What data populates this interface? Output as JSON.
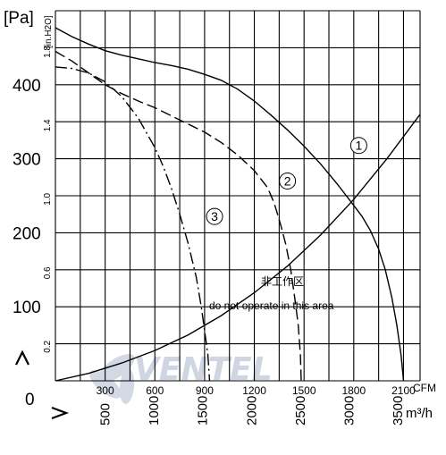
{
  "chart_data": {
    "type": "line",
    "title": "",
    "y_axis_pa": {
      "unit_label": "[Pa]",
      "range": [
        0,
        500
      ],
      "ticks": [
        {
          "value": 400,
          "label": "400"
        },
        {
          "value": 300,
          "label": "300"
        },
        {
          "value": 200,
          "label": "200"
        },
        {
          "value": 100,
          "label": "100"
        },
        {
          "value": 0,
          "label": "0"
        }
      ]
    },
    "y_axis_inh2o": {
      "unit_label": "[in.H2O]",
      "ticks": [
        {
          "value": 1.8,
          "label": "1.8"
        },
        {
          "value": 1.4,
          "label": "1.4"
        },
        {
          "value": 1.0,
          "label": "1.0"
        },
        {
          "value": 0.6,
          "label": "0.6"
        },
        {
          "value": 0.2,
          "label": "0.2"
        }
      ]
    },
    "x_axis_cfm": {
      "unit_label": "CFM",
      "range": [
        0,
        2200
      ],
      "ticks": [
        {
          "value": 300,
          "label": "300"
        },
        {
          "value": 600,
          "label": "600"
        },
        {
          "value": 900,
          "label": "900"
        },
        {
          "value": 1200,
          "label": "1200"
        },
        {
          "value": 1500,
          "label": "1500"
        },
        {
          "value": 1800,
          "label": "1800"
        },
        {
          "value": 2100,
          "label": "2100"
        }
      ]
    },
    "x_axis_m3h": {
      "unit_label": "m³/h",
      "ticks": [
        {
          "value": 500,
          "label": "500"
        },
        {
          "value": 1000,
          "label": "1000"
        },
        {
          "value": 1500,
          "label": "1500"
        },
        {
          "value": 2000,
          "label": "2000"
        },
        {
          "value": 2500,
          "label": "2500"
        },
        {
          "value": 3000,
          "label": "3000"
        },
        {
          "value": 3500,
          "label": "3500"
        }
      ]
    },
    "series": [
      {
        "name": "1",
        "style": "solid",
        "points": [
          [
            0,
            477
          ],
          [
            100,
            465
          ],
          [
            200,
            455
          ],
          [
            300,
            446
          ],
          [
            400,
            440
          ],
          [
            500,
            435
          ],
          [
            600,
            430
          ],
          [
            700,
            426
          ],
          [
            800,
            421
          ],
          [
            900,
            414
          ],
          [
            1000,
            406
          ],
          [
            1100,
            394
          ],
          [
            1200,
            378
          ],
          [
            1300,
            359
          ],
          [
            1400,
            339
          ],
          [
            1500,
            317
          ],
          [
            1600,
            293
          ],
          [
            1700,
            266
          ],
          [
            1800,
            237
          ],
          [
            1850,
            222
          ],
          [
            1900,
            203
          ],
          [
            1950,
            178
          ],
          [
            1990,
            150
          ],
          [
            2030,
            112
          ],
          [
            2060,
            75
          ],
          [
            2085,
            35
          ],
          [
            2100,
            0
          ]
        ]
      },
      {
        "name": "2",
        "style": "dashed",
        "points": [
          [
            0,
            445
          ],
          [
            100,
            432
          ],
          [
            200,
            416
          ],
          [
            300,
            400
          ],
          [
            400,
            388
          ],
          [
            500,
            378
          ],
          [
            600,
            369
          ],
          [
            700,
            358
          ],
          [
            800,
            347
          ],
          [
            900,
            336
          ],
          [
            1000,
            322
          ],
          [
            1100,
            305
          ],
          [
            1200,
            284
          ],
          [
            1280,
            261
          ],
          [
            1320,
            240
          ],
          [
            1360,
            210
          ],
          [
            1390,
            184
          ],
          [
            1420,
            150
          ],
          [
            1445,
            110
          ],
          [
            1465,
            75
          ],
          [
            1478,
            35
          ],
          [
            1483,
            0
          ]
        ]
      },
      {
        "name": "3",
        "style": "dashdot",
        "points": [
          [
            0,
            424
          ],
          [
            100,
            422
          ],
          [
            200,
            416
          ],
          [
            300,
            404
          ],
          [
            400,
            384
          ],
          [
            500,
            355
          ],
          [
            600,
            315
          ],
          [
            650,
            290
          ],
          [
            700,
            260
          ],
          [
            750,
            225
          ],
          [
            800,
            186
          ],
          [
            850,
            140
          ],
          [
            880,
            100
          ],
          [
            900,
            68
          ],
          [
            920,
            35
          ],
          [
            930,
            0
          ]
        ]
      },
      {
        "name": "",
        "style": "solid",
        "points": [
          [
            0,
            0
          ],
          [
            200,
            10
          ],
          [
            400,
            24
          ],
          [
            600,
            41
          ],
          [
            800,
            62
          ],
          [
            1000,
            88
          ],
          [
            1200,
            119
          ],
          [
            1400,
            155
          ],
          [
            1600,
            197
          ],
          [
            1800,
            245
          ],
          [
            2000,
            300
          ],
          [
            2200,
            360
          ]
        ]
      }
    ],
    "curve_labels": [
      "1",
      "2",
      "3"
    ],
    "annotations": [
      {
        "text": "非工作区"
      },
      {
        "text": "do not operate in this area"
      }
    ],
    "watermark": "VENTEL",
    "grid": true,
    "legend": "none"
  },
  "markers": {
    "y_arrow": "up-arrow-glyph",
    "x_arrow": "right-arrow-glyph"
  }
}
